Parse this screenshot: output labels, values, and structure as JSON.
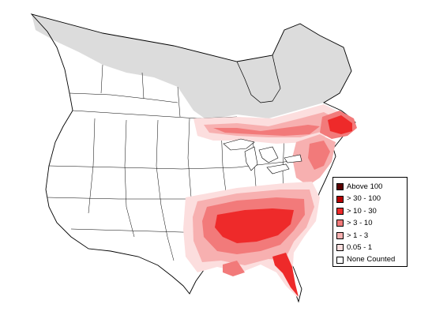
{
  "legend": {
    "items": [
      {
        "label": "Above 100",
        "color": "#5a0000"
      },
      {
        "label": "> 30 - 100",
        "color": "#b80000"
      },
      {
        "label": "> 10 - 30",
        "color": "#ee2a2a"
      },
      {
        "label": "> 3 - 10",
        "color": "#f27a7a"
      },
      {
        "label": "> 1 - 3",
        "color": "#f7b0b0"
      },
      {
        "label": "0.05 - 1",
        "color": "#fcdede"
      },
      {
        "label": "None Counted",
        "color": "#ffffff"
      }
    ]
  },
  "colors": {
    "no_data": "#dcdcdc",
    "outline": "#000000",
    "water": "#ffffff"
  }
}
